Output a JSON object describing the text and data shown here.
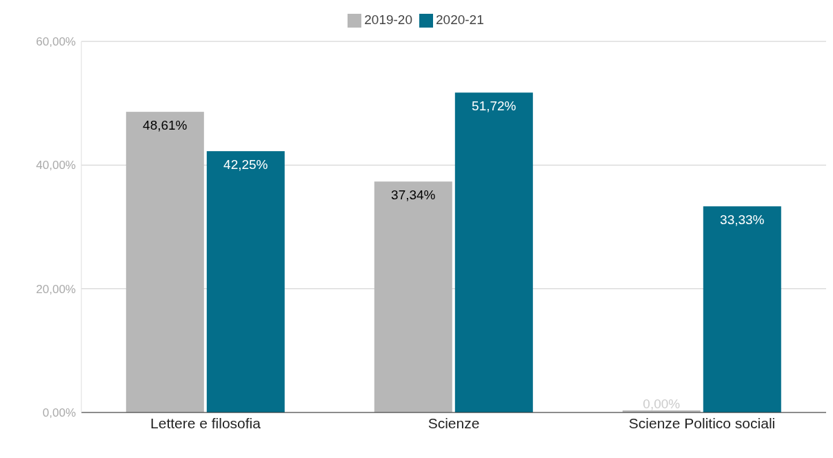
{
  "chart_data": {
    "type": "bar",
    "categories": [
      "Lettere e filosofia",
      "Scienze",
      "Scienze Politico sociali"
    ],
    "series": [
      {
        "name": "2019-20",
        "color": "#b7b7b7",
        "values": [
          48.61,
          37.34,
          0
        ],
        "value_labels": [
          "48,61%",
          "37,34%",
          "0,00%"
        ]
      },
      {
        "name": "2020-21",
        "color": "#046e8a",
        "values": [
          42.25,
          51.72,
          33.33
        ],
        "value_labels": [
          "42,25%",
          "51,72%",
          "33,33%"
        ]
      }
    ],
    "ylim": [
      0,
      60
    ],
    "yticks": [
      {
        "value": 0,
        "label": "0,00%"
      },
      {
        "value": 20,
        "label": "20,00%"
      },
      {
        "value": 40,
        "label": "40,00%"
      },
      {
        "value": 60,
        "label": "60,00%"
      }
    ],
    "grid": "y",
    "legend": "top"
  }
}
